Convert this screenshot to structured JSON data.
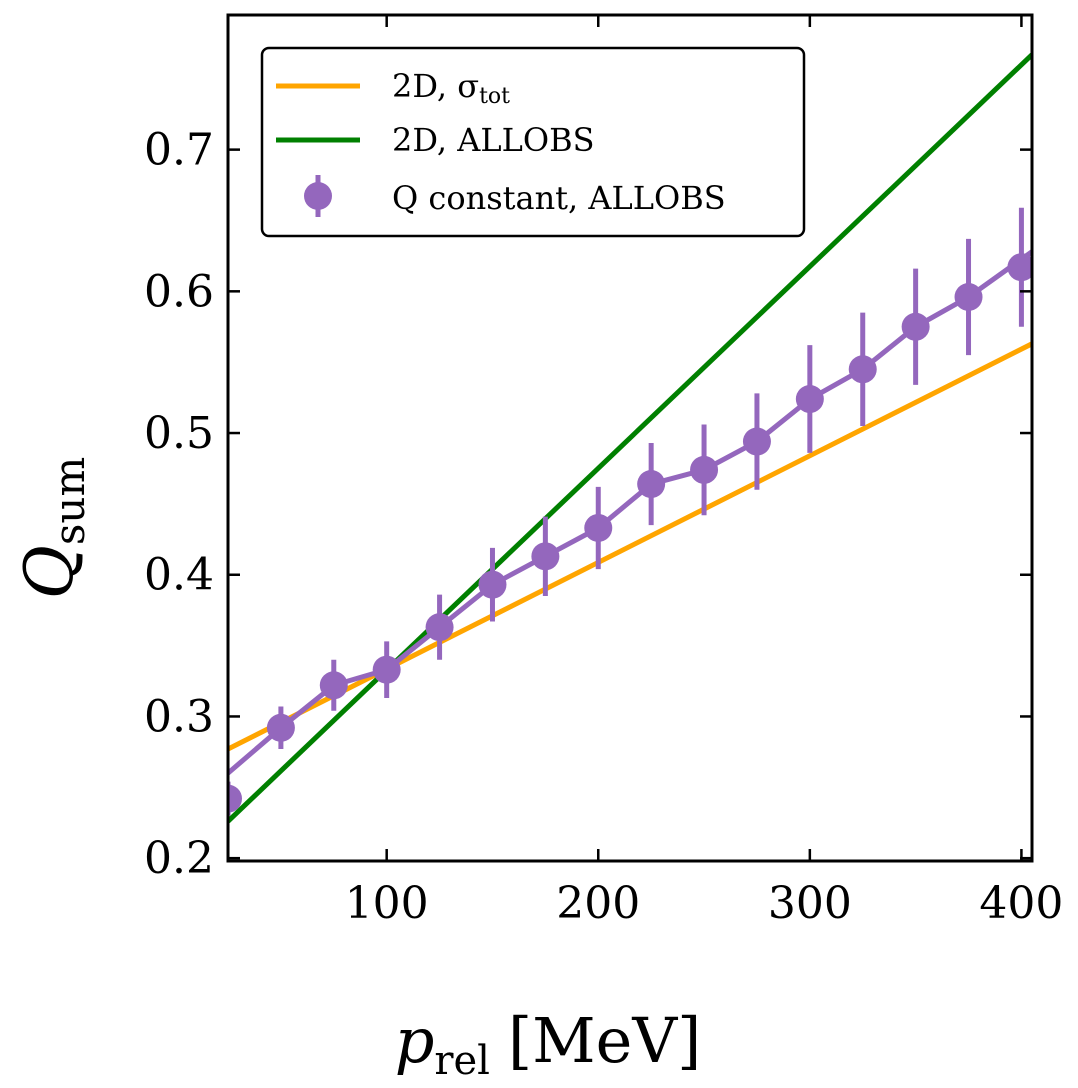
{
  "chart_data": {
    "type": "line",
    "xlabel": {
      "main": "p",
      "sub": "rel",
      "unit": "[MeV]"
    },
    "ylabel": {
      "main": "Q",
      "sub": "sum"
    },
    "xlim": [
      25,
      405
    ],
    "ylim": [
      0.198,
      0.795
    ],
    "xticks": [
      100,
      200,
      300,
      400
    ],
    "xtick_labels": [
      "100",
      "200",
      "300",
      "400"
    ],
    "yticks": [
      0.2,
      0.3,
      0.4,
      0.5,
      0.6,
      0.7
    ],
    "ytick_labels": [
      "0.2",
      "0.3",
      "0.4",
      "0.5",
      "0.6",
      "0.7"
    ],
    "grid": false,
    "legend_position": "top-left",
    "series": [
      {
        "name": "2D, σ_tot",
        "legend": {
          "main": "2D, σ",
          "sub": "tot"
        },
        "kind": "line",
        "color": "#FFA500",
        "x": [
          25,
          405
        ],
        "y": [
          0.277,
          0.563
        ]
      },
      {
        "name": "2D, ALLOBS",
        "legend": {
          "main": "2D, ALLOBS",
          "sub": ""
        },
        "kind": "line",
        "color": "#008000",
        "x": [
          25,
          405
        ],
        "y": [
          0.226,
          0.767
        ]
      },
      {
        "name": "Q constant, ALLOBS",
        "legend": {
          "main": "Q constant, ALLOBS",
          "sub": ""
        },
        "kind": "errorbar-line",
        "color": "#9467BD",
        "x": [
          25,
          50,
          75,
          100,
          125,
          150,
          175,
          200,
          225,
          250,
          275,
          300,
          325,
          350,
          375,
          400
        ],
        "y": [
          0.242,
          0.292,
          0.322,
          0.333,
          0.363,
          0.393,
          0.413,
          0.433,
          0.464,
          0.474,
          0.494,
          0.524,
          0.545,
          0.575,
          0.596,
          0.617
        ],
        "yerr": [
          0.012,
          0.015,
          0.018,
          0.02,
          0.023,
          0.026,
          0.028,
          0.029,
          0.029,
          0.032,
          0.034,
          0.038,
          0.04,
          0.041,
          0.041,
          0.042
        ],
        "line_x": [
          25,
          50,
          75,
          100,
          125,
          150,
          175,
          200,
          225,
          250,
          275,
          300,
          325,
          350,
          375,
          405
        ],
        "line_y": [
          0.26,
          0.292,
          0.322,
          0.333,
          0.363,
          0.393,
          0.413,
          0.433,
          0.464,
          0.474,
          0.494,
          0.524,
          0.545,
          0.575,
          0.596,
          0.628
        ]
      }
    ]
  }
}
